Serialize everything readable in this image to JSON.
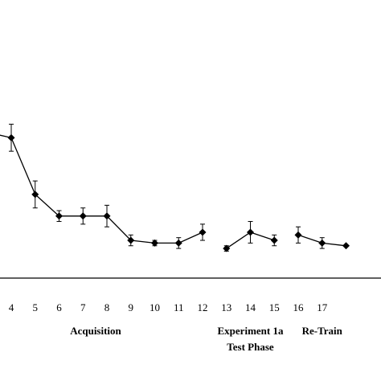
{
  "chart_data": {
    "type": "line",
    "title": "",
    "xlabel": "",
    "ylabel": "",
    "grid": false,
    "x_ticks": [
      4,
      5,
      6,
      7,
      8,
      9,
      10,
      11,
      12,
      13,
      14,
      15,
      16,
      17
    ],
    "y_range_estimated": [
      0,
      1
    ],
    "series": [
      {
        "segments": [
          {
            "points": [
              {
                "x": 3,
                "y": 0.76,
                "err": 0.03
              },
              {
                "x": 4,
                "y": 0.74,
                "err": 0.05
              },
              {
                "x": 5,
                "y": 0.53,
                "err": 0.05
              },
              {
                "x": 6,
                "y": 0.45,
                "err": 0.02
              },
              {
                "x": 7,
                "y": 0.45,
                "err": 0.03
              },
              {
                "x": 8,
                "y": 0.45,
                "err": 0.04
              },
              {
                "x": 9,
                "y": 0.36,
                "err": 0.02
              },
              {
                "x": 10,
                "y": 0.35,
                "err": 0.01
              },
              {
                "x": 11,
                "y": 0.35,
                "err": 0.02
              },
              {
                "x": 12,
                "y": 0.39,
                "err": 0.03
              }
            ]
          },
          {
            "points": [
              {
                "x": 13,
                "y": 0.33,
                "err": 0.01
              },
              {
                "x": 14,
                "y": 0.39,
                "err": 0.04
              },
              {
                "x": 15,
                "y": 0.36,
                "err": 0.02
              }
            ]
          },
          {
            "points": [
              {
                "x": 16,
                "y": 0.38,
                "err": 0.03
              },
              {
                "x": 17,
                "y": 0.35,
                "err": 0.02
              },
              {
                "x": 18,
                "y": 0.34,
                "err": 0.0
              }
            ]
          }
        ]
      }
    ],
    "phase_labels": [
      {
        "lines": [
          "Acquisition"
        ],
        "x_center": 8
      },
      {
        "lines": [
          "Experiment 1a",
          "Test Phase"
        ],
        "x_center": 14
      },
      {
        "lines": [
          "Re-Train"
        ],
        "x_center": 17
      }
    ],
    "colors": {
      "line": "#000000",
      "marker": "#000000"
    }
  }
}
